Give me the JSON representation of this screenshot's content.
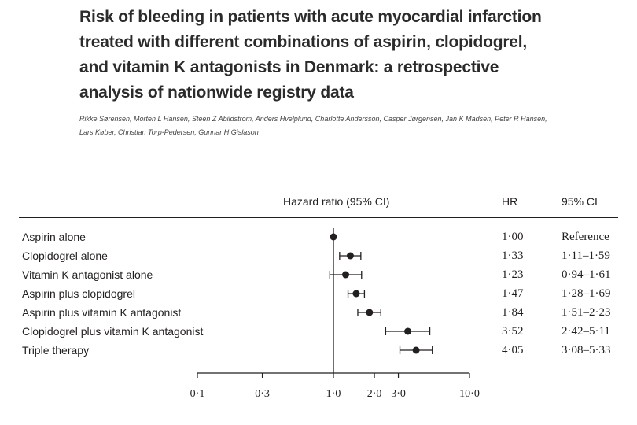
{
  "title_lines": [
    "Risk of bleeding in patients with acute myocardial infarction",
    "treated with different combinations of aspirin, clopidogrel,",
    "and vitamin K antagonists in Denmark: a retrospective",
    "analysis of nationwide registry data"
  ],
  "authors_lines": [
    "Rikke Sørensen, Morten L Hansen, Steen Z Abildstrom, Anders Hvelplund, Charlotte Andersson, Casper Jørgensen, Jan K Madsen, Peter R Hansen,",
    "Lars Køber, Christian Torp-Pedersen, Gunnar H Gislason"
  ],
  "headers": {
    "plot": "Hazard ratio (95% CI)",
    "hr": "HR",
    "ci": "95% CI"
  },
  "colors": {
    "ink": "#231f20"
  },
  "chart_data": {
    "type": "forest",
    "title": "Hazard ratio (95% CI)",
    "scale": "log",
    "reference_line": 1.0,
    "xlim": [
      0.1,
      10.0
    ],
    "ticks": [
      {
        "value": 0.1,
        "label": "0·1"
      },
      {
        "value": 0.3,
        "label": "0·3"
      },
      {
        "value": 1.0,
        "label": "1·0"
      },
      {
        "value": 2.0,
        "label": "2·0"
      },
      {
        "value": 3.0,
        "label": "3·0"
      },
      {
        "value": 10.0,
        "label": "10·0"
      }
    ],
    "rows": [
      {
        "label": "Aspirin alone",
        "hr": 1.0,
        "lo": null,
        "hi": null,
        "hr_text": "1·00",
        "ci_text": "Reference"
      },
      {
        "label": "Clopidogrel alone",
        "hr": 1.33,
        "lo": 1.11,
        "hi": 1.59,
        "hr_text": "1·33",
        "ci_text": "1·11–1·59"
      },
      {
        "label": "Vitamin K antagonist alone",
        "hr": 1.23,
        "lo": 0.94,
        "hi": 1.61,
        "hr_text": "1·23",
        "ci_text": "0·94–1·61"
      },
      {
        "label": "Aspirin plus clopidogrel",
        "hr": 1.47,
        "lo": 1.28,
        "hi": 1.69,
        "hr_text": "1·47",
        "ci_text": "1·28–1·69"
      },
      {
        "label": "Aspirin plus vitamin K antagonist",
        "hr": 1.84,
        "lo": 1.51,
        "hi": 2.23,
        "hr_text": "1·84",
        "ci_text": "1·51–2·23"
      },
      {
        "label": "Clopidogrel plus vitamin K antagonist",
        "hr": 3.52,
        "lo": 2.42,
        "hi": 5.11,
        "hr_text": "3·52",
        "ci_text": "2·42–5·11"
      },
      {
        "label": "Triple therapy",
        "hr": 4.05,
        "lo": 3.08,
        "hi": 5.33,
        "hr_text": "4·05",
        "ci_text": "3·08–5·33"
      }
    ]
  }
}
